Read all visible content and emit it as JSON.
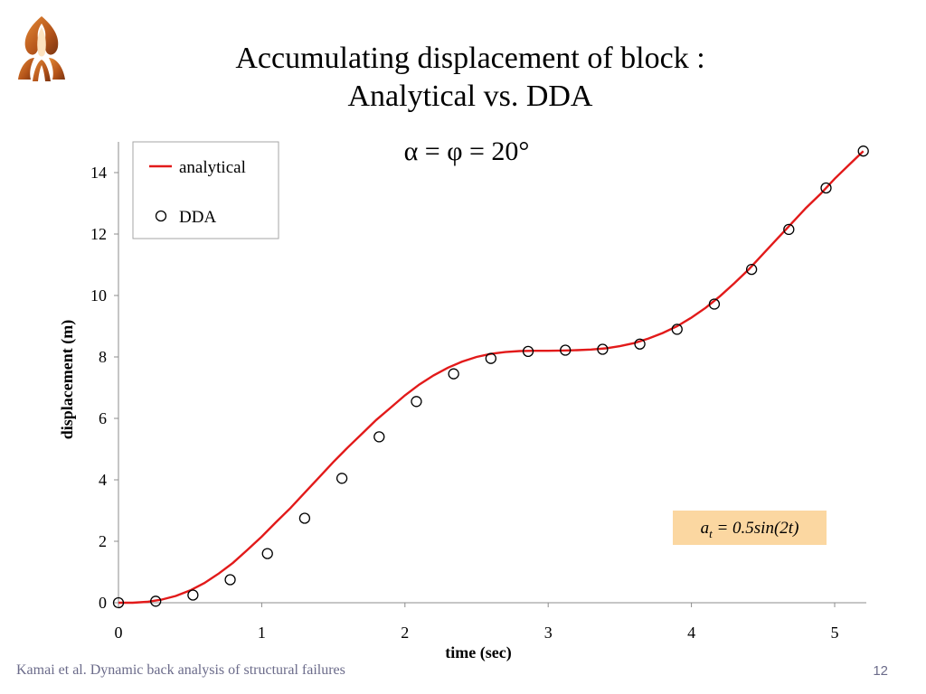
{
  "slide": {
    "title_line1": "Accumulating displacement of block :",
    "title_line2": "Analytical vs. DDA",
    "footer": "Kamai et al. Dynamic back analysis of structural failures",
    "page_number": "12",
    "logo": "university-logo"
  },
  "colors": {
    "analytical_line": "#e21a1a",
    "dda_marker": "#000000",
    "annotation_bg": "#fbd7a1",
    "footer_text": "#6b6b8a"
  },
  "chart_data": {
    "type": "line",
    "subtitle": "α = φ = 20°",
    "xlabel": "time (sec)",
    "ylabel": "displacement (m)",
    "xlim": [
      0,
      5.2
    ],
    "ylim": [
      0,
      15
    ],
    "xticks": [
      0,
      1,
      2,
      3,
      4,
      5
    ],
    "yticks": [
      0,
      2,
      4,
      6,
      8,
      10,
      12,
      14
    ],
    "grid": false,
    "legend_position": "top-left",
    "annotation": {
      "prefix": "a",
      "subscript": "t",
      "text": " = 0.5sin(2t)"
    },
    "series": [
      {
        "name": "analytical",
        "style": "line",
        "x": [
          0,
          0.1,
          0.2,
          0.3,
          0.4,
          0.5,
          0.6,
          0.7,
          0.8,
          0.9,
          1.0,
          1.1,
          1.2,
          1.3,
          1.4,
          1.5,
          1.6,
          1.7,
          1.8,
          1.9,
          2.0,
          2.1,
          2.2,
          2.3,
          2.4,
          2.5,
          2.6,
          2.7,
          2.8,
          2.9,
          3.0,
          3.1,
          3.2,
          3.3,
          3.4,
          3.5,
          3.6,
          3.7,
          3.8,
          3.9,
          4.0,
          4.1,
          4.2,
          4.3,
          4.4,
          4.5,
          4.6,
          4.7,
          4.8,
          4.9,
          5.0,
          5.1,
          5.2
        ],
        "values": [
          0.0,
          0.0,
          0.03,
          0.1,
          0.22,
          0.4,
          0.64,
          0.95,
          1.3,
          1.72,
          2.15,
          2.62,
          3.08,
          3.58,
          4.08,
          4.58,
          5.05,
          5.5,
          5.95,
          6.35,
          6.75,
          7.1,
          7.4,
          7.65,
          7.85,
          8.0,
          8.1,
          8.16,
          8.19,
          8.2,
          8.2,
          8.21,
          8.22,
          8.24,
          8.28,
          8.35,
          8.45,
          8.6,
          8.78,
          9.0,
          9.28,
          9.6,
          9.98,
          10.4,
          10.85,
          11.35,
          11.85,
          12.35,
          12.85,
          13.3,
          13.8,
          14.25,
          14.7
        ]
      },
      {
        "name": "DDA",
        "style": "markers",
        "x": [
          0.0,
          0.26,
          0.52,
          0.78,
          1.04,
          1.3,
          1.56,
          1.82,
          2.08,
          2.34,
          2.6,
          2.86,
          3.12,
          3.38,
          3.64,
          3.9,
          4.16,
          4.42,
          4.68,
          4.94,
          5.2
        ],
        "values": [
          0.0,
          0.05,
          0.25,
          0.75,
          1.6,
          2.75,
          4.05,
          5.4,
          6.55,
          7.45,
          7.95,
          8.18,
          8.22,
          8.25,
          8.42,
          8.9,
          9.72,
          10.85,
          12.15,
          13.5,
          14.7
        ]
      }
    ]
  }
}
